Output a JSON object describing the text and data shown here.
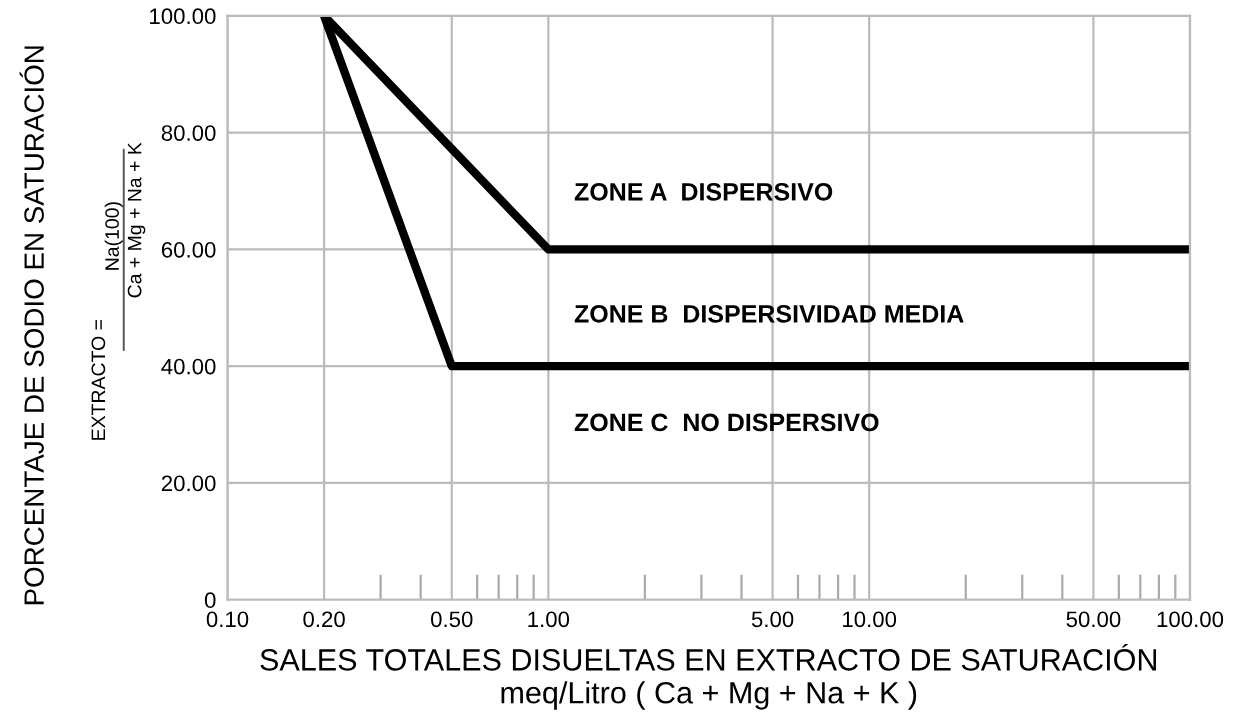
{
  "chart_data": {
    "type": "line",
    "xlabel": "SALES TOTALES DISUELTAS EN EXTRACTO DE SATURACIÓN\nmeq/Litro ( Ca + Mg + Na + K )",
    "ylabel": "PORCENTAJE DE SODIO EN SATURACIÓN",
    "log": "x",
    "xlim": [
      0.1,
      100
    ],
    "ylim": [
      0,
      100
    ],
    "xticks": [
      {
        "value": 0.1,
        "label": "0.10"
      },
      {
        "value": 0.2,
        "label": "0.20"
      },
      {
        "value": 0.5,
        "label": "0.50"
      },
      {
        "value": 1,
        "label": "1.00"
      },
      {
        "value": 5,
        "label": "5.00"
      },
      {
        "value": 10,
        "label": "10.00"
      },
      {
        "value": 50,
        "label": "50.00"
      },
      {
        "value": 100,
        "label": "100.00"
      }
    ],
    "yticks": [
      0,
      {
        "value": 20,
        "label": "20.00"
      },
      {
        "value": 40,
        "label": "40.00"
      },
      {
        "value": 60,
        "label": "60.00"
      },
      {
        "value": 80,
        "label": "80.00"
      },
      {
        "value": 100,
        "label": "100.00"
      }
    ],
    "grid": true,
    "marker": "none",
    "line_style": "solid",
    "series": [
      {
        "color": "#000000",
        "x": [
          0.2,
          1,
          100
        ],
        "values": [
          100,
          60,
          60
        ]
      },
      {
        "color": "#000000",
        "x": [
          0.2,
          0.5,
          100
        ],
        "values": [
          100,
          40,
          40
        ]
      }
    ],
    "annotations": [
      "ZONE A  DISPERSIVO",
      "ZONE B  DISPERSIVIDAD MEDIA",
      "ZONE C  NO DISPERSIVO",
      "EXTRACTO =",
      "Na(100)",
      "Ca + Mg + Na + K"
    ]
  }
}
